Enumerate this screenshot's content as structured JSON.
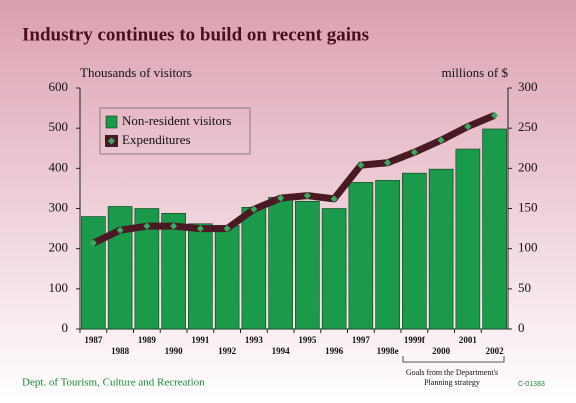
{
  "chart_data": {
    "type": "bar-line",
    "title": "Industry continues to build on recent gains",
    "y_label": "Thousands of visitors",
    "y2_label": "millions of $",
    "categories": [
      "1987",
      "1988",
      "1989",
      "1990",
      "1991",
      "1992",
      "1993",
      "1994",
      "1995",
      "1996",
      "1997",
      "1998e",
      "1999f",
      "2000",
      "2001",
      "2002"
    ],
    "series": [
      {
        "name": "Non-resident visitors",
        "type": "bar",
        "color": "#1a9a4a",
        "values": [
          280,
          305,
          300,
          288,
          262,
          258,
          303,
          328,
          318,
          300,
          365,
          370,
          388,
          398,
          448,
          498
        ]
      },
      {
        "name": "Expenditures",
        "type": "line",
        "axis": "y2",
        "color": "#4a1a24",
        "marker_color": "#3aaa60",
        "values": [
          107,
          123,
          128,
          128,
          125,
          125,
          149,
          163,
          166,
          162,
          204,
          207,
          220,
          235,
          252,
          266
        ]
      }
    ],
    "ylim": [
      0,
      600
    ],
    "yticks": [
      0,
      100,
      200,
      300,
      400,
      500,
      600
    ],
    "y2lim": [
      0,
      300
    ],
    "y2ticks": [
      0,
      50,
      100,
      150,
      200,
      250,
      300
    ],
    "legend": "upper left",
    "annotation": [
      "Goals from the Department's",
      "Planning strategy"
    ],
    "source": "Dept. of Tourism, Culture and Recreation",
    "code": "C-01383"
  }
}
